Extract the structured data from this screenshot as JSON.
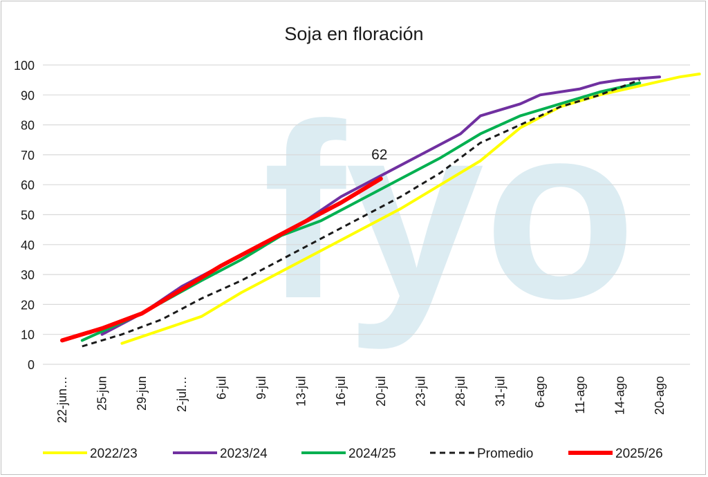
{
  "chart_data": {
    "type": "line",
    "title": "Soja en floración",
    "xlabel": "",
    "ylabel": "",
    "ylim": [
      0,
      100
    ],
    "yticks": [
      0,
      10,
      20,
      30,
      40,
      50,
      60,
      70,
      80,
      90,
      100
    ],
    "categories": [
      "22-jun…",
      "25-jun",
      "29-jun",
      "2-jul…",
      "6-jul",
      "9-jul",
      "13-jul",
      "16-jul",
      "20-jul",
      "23-jul",
      "28-jul",
      "31-jul",
      "6-ago",
      "11-ago",
      "14-ago",
      "20-ago"
    ],
    "grid": true,
    "legend": "bottom",
    "watermark_text": "fyo",
    "series": [
      {
        "name": "2022/23",
        "color": "#ffff00",
        "style": "solid",
        "points": [
          [
            1.5,
            7
          ],
          [
            3.5,
            16
          ],
          [
            4.5,
            24
          ],
          [
            5.5,
            31
          ],
          [
            6.5,
            38
          ],
          [
            7.5,
            45
          ],
          [
            8.5,
            52
          ],
          [
            9.5,
            60
          ],
          [
            10.5,
            68
          ],
          [
            11.5,
            79
          ],
          [
            12.5,
            86
          ],
          [
            13.5,
            90
          ],
          [
            14.5,
            93
          ],
          [
            15.5,
            96
          ],
          [
            16,
            97
          ]
        ]
      },
      {
        "name": "2023/24",
        "color": "#7030a0",
        "style": "solid",
        "points": [
          [
            1.0,
            10
          ],
          [
            2.0,
            17
          ],
          [
            3.0,
            26
          ],
          [
            4.0,
            33
          ],
          [
            5.0,
            40
          ],
          [
            6.0,
            47
          ],
          [
            7.0,
            56
          ],
          [
            8.0,
            63
          ],
          [
            9.0,
            70
          ],
          [
            10.0,
            77
          ],
          [
            10.5,
            83
          ],
          [
            11.5,
            87
          ],
          [
            12.0,
            90
          ],
          [
            13.0,
            92
          ],
          [
            13.5,
            94
          ],
          [
            14.0,
            95
          ],
          [
            15.0,
            96
          ]
        ]
      },
      {
        "name": "2024/25",
        "color": "#00b050",
        "style": "solid",
        "points": [
          [
            0.5,
            8
          ],
          [
            2.0,
            17
          ],
          [
            3.5,
            28
          ],
          [
            4.5,
            35
          ],
          [
            5.5,
            43
          ],
          [
            6.5,
            48
          ],
          [
            7.5,
            55
          ],
          [
            8.5,
            62
          ],
          [
            9.5,
            69
          ],
          [
            10.5,
            77
          ],
          [
            11.5,
            83
          ],
          [
            12.5,
            87
          ],
          [
            13.5,
            91
          ],
          [
            14.5,
            94
          ]
        ]
      },
      {
        "name": "Promedio",
        "color": "#1a1a1a",
        "style": "dashed",
        "points": [
          [
            0.5,
            6
          ],
          [
            1.5,
            10
          ],
          [
            2.5,
            15
          ],
          [
            3.5,
            22
          ],
          [
            4.5,
            28
          ],
          [
            5.5,
            35
          ],
          [
            6.5,
            42
          ],
          [
            7.5,
            49
          ],
          [
            8.5,
            56
          ],
          [
            9.5,
            64
          ],
          [
            10.5,
            74
          ],
          [
            11.5,
            80
          ],
          [
            12.5,
            86
          ],
          [
            13.5,
            90
          ],
          [
            14.5,
            95
          ]
        ]
      },
      {
        "name": "2025/26",
        "color": "#ff0000",
        "style": "solid",
        "points": [
          [
            0,
            8
          ],
          [
            1,
            12
          ],
          [
            2,
            17
          ],
          [
            3,
            25
          ],
          [
            4,
            33
          ],
          [
            5,
            40
          ],
          [
            6,
            47
          ],
          [
            7,
            54
          ],
          [
            8,
            62
          ]
        ]
      }
    ],
    "annotations": [
      {
        "text": "62",
        "series": "2025/26",
        "x": 8,
        "y": 62
      }
    ]
  }
}
